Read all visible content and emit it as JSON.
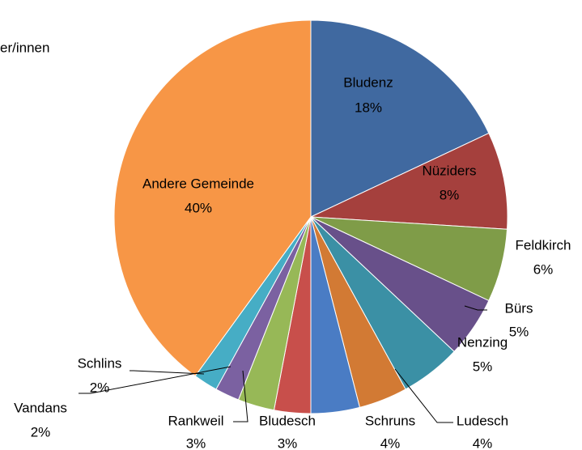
{
  "chart_data": {
    "type": "pie",
    "title": "er/innen",
    "categories": [
      "Bludenz",
      "Nüziders",
      "Feldkirch",
      "Bürs",
      "Nenzing",
      "Ludesch",
      "Schruns",
      "Bludesch",
      "Rankweil",
      "Vandans",
      "Schlins",
      "Andere Gemeinde"
    ],
    "values": [
      18,
      8,
      6,
      5,
      5,
      4,
      4,
      3,
      3,
      2,
      2,
      40
    ],
    "value_labels": [
      "18%",
      "8%",
      "6%",
      "5%",
      "5%",
      "4%",
      "4%",
      "3%",
      "3%",
      "2%",
      "2%",
      "40%"
    ],
    "colors": [
      "#4069a0",
      "#a5403d",
      "#7f9c48",
      "#68508a",
      "#3b90a5",
      "#d27a34",
      "#4a7cc4",
      "#c84f4b",
      "#97b857",
      "#7b61a1",
      "#46adc5",
      "#f79646"
    ]
  }
}
